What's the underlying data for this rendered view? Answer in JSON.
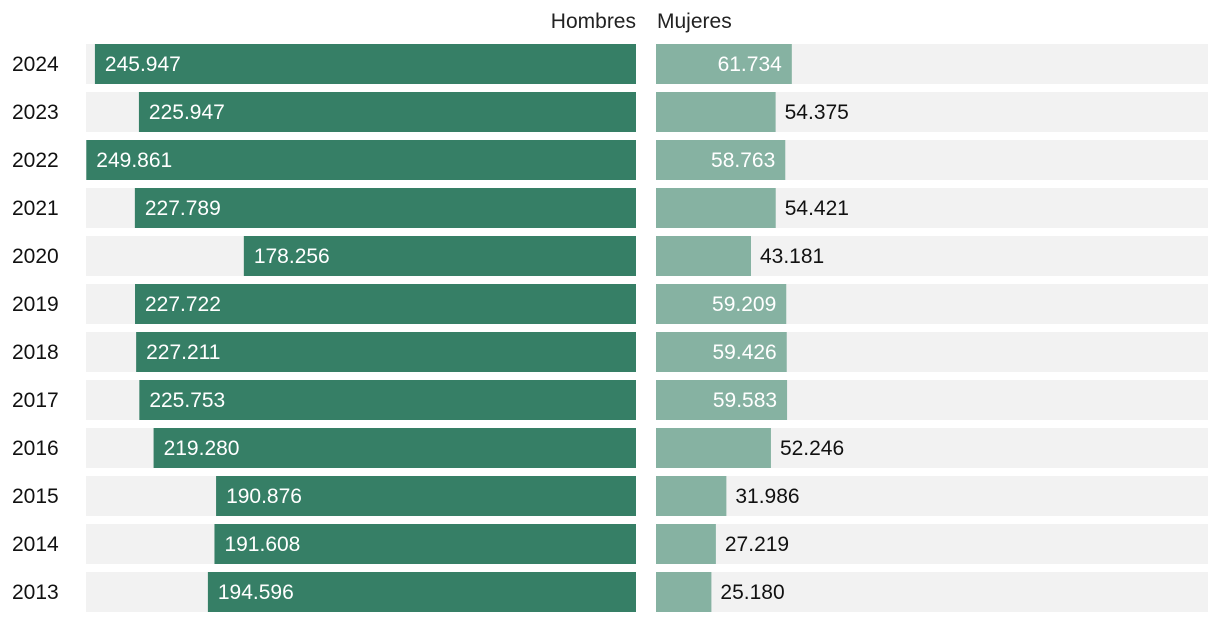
{
  "chart_data": {
    "type": "bar",
    "layout": "butterfly",
    "categories": [
      "2024",
      "2023",
      "2022",
      "2021",
      "2020",
      "2019",
      "2018",
      "2017",
      "2016",
      "2015",
      "2014",
      "2013"
    ],
    "series": [
      {
        "name": "Hombres",
        "color": "#367f66",
        "values": [
          245947,
          225947,
          249861,
          227789,
          178256,
          227722,
          227211,
          225753,
          219280,
          190876,
          191608,
          194596
        ],
        "labels": [
          "245.947",
          "225.947",
          "249.861",
          "227.789",
          "178.256",
          "227.722",
          "227.211",
          "225.753",
          "219.280",
          "190.876",
          "191.608",
          "194.596"
        ]
      },
      {
        "name": "Mujeres",
        "color": "#86b2a2",
        "values": [
          61734,
          54375,
          58763,
          54421,
          43181,
          59209,
          59426,
          59583,
          52246,
          31986,
          27219,
          25180
        ],
        "labels": [
          "61.734",
          "54.375",
          "58.763",
          "54.421",
          "43.181",
          "59.209",
          "59.426",
          "59.583",
          "52.246",
          "31.986",
          "27.219",
          "25.180"
        ]
      }
    ],
    "track_color": "#f2f2f2",
    "scale_max": 250000
  }
}
